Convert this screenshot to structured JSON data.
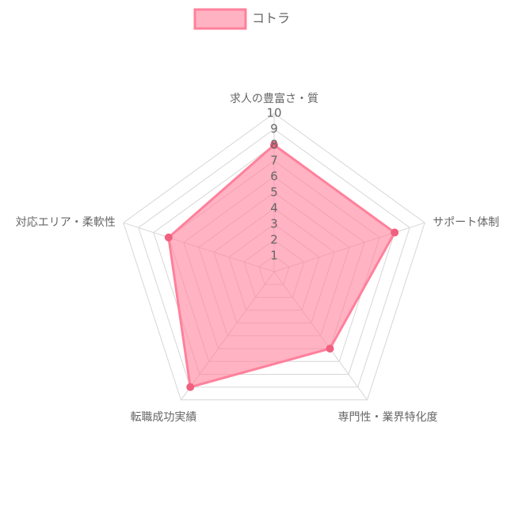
{
  "chart_data": {
    "type": "radar",
    "labels": [
      "求人の豊富さ・質",
      "サポート体制",
      "専門性・業界特化度",
      "転職成功実績",
      "対応エリア・柔軟性"
    ],
    "series": [
      {
        "name": "コトラ",
        "values": [
          8,
          8,
          6,
          9,
          7
        ],
        "fill": "#ff809b",
        "stroke": "#ff809b",
        "point": "#f0607f"
      }
    ],
    "r_min": 0,
    "r_max": 10,
    "ticks": [
      1,
      2,
      3,
      4,
      5,
      6,
      7,
      8,
      9,
      10
    ],
    "legend_position": "top",
    "grid": true
  }
}
